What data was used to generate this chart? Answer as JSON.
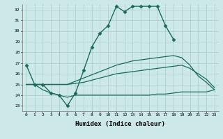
{
  "xlabel": "Humidex (Indice chaleur)",
  "bg_color": "#cce8e8",
  "grid_color": "#aacccc",
  "line_color": "#1a6b5a",
  "xlim": [
    -0.5,
    23.5
  ],
  "ylim": [
    22.5,
    32.5
  ],
  "yticks": [
    23,
    24,
    25,
    26,
    27,
    28,
    29,
    30,
    31,
    32
  ],
  "xticks": [
    0,
    1,
    2,
    3,
    4,
    5,
    6,
    7,
    8,
    9,
    10,
    11,
    12,
    13,
    14,
    15,
    16,
    17,
    18,
    19,
    20,
    21,
    22,
    23
  ],
  "series": [
    {
      "x": [
        0,
        1,
        2,
        3,
        4,
        5,
        6,
        7,
        8,
        9,
        10,
        11,
        12,
        13,
        14,
        15,
        16,
        17,
        18
      ],
      "y": [
        26.8,
        25.0,
        25.0,
        24.2,
        24.0,
        23.0,
        24.2,
        26.3,
        28.5,
        29.8,
        30.5,
        32.3,
        31.8,
        32.3,
        32.3,
        32.3,
        32.3,
        30.5,
        29.2
      ],
      "marker": "D",
      "markersize": 2.5,
      "linewidth": 1.0
    },
    {
      "x": [
        0,
        1,
        2,
        3,
        4,
        5,
        6,
        7,
        8,
        9,
        10,
        11,
        12,
        13,
        14,
        15,
        16,
        17,
        18,
        19,
        20,
        21,
        22,
        23
      ],
      "y": [
        25.0,
        25.0,
        25.0,
        25.0,
        25.0,
        25.0,
        25.3,
        25.6,
        25.9,
        26.2,
        26.5,
        26.8,
        27.0,
        27.2,
        27.3,
        27.4,
        27.5,
        27.6,
        27.7,
        27.5,
        26.8,
        25.8,
        25.2,
        24.5
      ],
      "marker": null,
      "markersize": 0,
      "linewidth": 0.9
    },
    {
      "x": [
        0,
        1,
        2,
        3,
        4,
        5,
        6,
        7,
        8,
        9,
        10,
        11,
        12,
        13,
        14,
        15,
        16,
        17,
        18,
        19,
        20,
        21,
        22,
        23
      ],
      "y": [
        25.0,
        25.0,
        25.0,
        25.0,
        25.0,
        25.0,
        25.1,
        25.2,
        25.4,
        25.6,
        25.8,
        26.0,
        26.1,
        26.2,
        26.3,
        26.4,
        26.5,
        26.6,
        26.7,
        26.8,
        26.5,
        26.0,
        25.5,
        24.7
      ],
      "marker": null,
      "markersize": 0,
      "linewidth": 0.9
    },
    {
      "x": [
        0,
        1,
        2,
        3,
        4,
        5,
        6,
        7,
        8,
        9,
        10,
        11,
        12,
        13,
        14,
        15,
        16,
        17,
        18,
        19,
        20,
        21,
        22,
        23
      ],
      "y": [
        25.0,
        25.0,
        24.5,
        24.2,
        24.0,
        23.8,
        24.0,
        24.0,
        24.0,
        24.0,
        24.0,
        24.0,
        24.0,
        24.0,
        24.0,
        24.0,
        24.1,
        24.1,
        24.2,
        24.3,
        24.3,
        24.3,
        24.3,
        24.5
      ],
      "marker": null,
      "markersize": 0,
      "linewidth": 0.9
    }
  ]
}
